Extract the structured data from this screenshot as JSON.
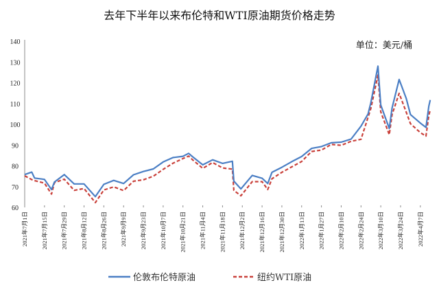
{
  "chart_data": {
    "type": "line",
    "title": "去年下半年以来布伦特和WTI原油期货价格走势",
    "unit_label": "单位：美元/桶",
    "xlabel": "",
    "ylabel": "",
    "ylim": [
      60,
      140
    ],
    "yticks": [
      60,
      70,
      80,
      90,
      100,
      110,
      120,
      130,
      140
    ],
    "grid": false,
    "legend_position": "bottom",
    "x_tick_labels": [
      {
        "date": "2021-07-01",
        "label": "2021年7月1日"
      },
      {
        "date": "2021-07-15",
        "label": "2021年7月15日"
      },
      {
        "date": "2021-07-29",
        "label": "2021年7月29日"
      },
      {
        "date": "2021-08-12",
        "label": "2021年8月12日"
      },
      {
        "date": "2021-08-26",
        "label": "2021年8月26日"
      },
      {
        "date": "2021-09-09",
        "label": "2021年9月9日"
      },
      {
        "date": "2021-09-23",
        "label": "2021年9月23日"
      },
      {
        "date": "2021-10-07",
        "label": "2021年10月7日"
      },
      {
        "date": "2021-10-21",
        "label": "2021年10月21日"
      },
      {
        "date": "2021-11-04",
        "label": "2021年11月4日"
      },
      {
        "date": "2021-11-18",
        "label": "2021年11月18日"
      },
      {
        "date": "2021-12-02",
        "label": "2021年12月2日"
      },
      {
        "date": "2021-12-16",
        "label": "2021年12月16日"
      },
      {
        "date": "2021-12-30",
        "label": "2021年12月30日"
      },
      {
        "date": "2022-01-13",
        "label": "2022年1月13日"
      },
      {
        "date": "2022-01-27",
        "label": "2022年1月27日"
      },
      {
        "date": "2022-02-10",
        "label": "2022年2月10日"
      },
      {
        "date": "2022-02-24",
        "label": "2022年2月24日"
      },
      {
        "date": "2022-03-10",
        "label": "2022年3月10日"
      },
      {
        "date": "2022-03-24",
        "label": "2022年3月24日"
      },
      {
        "date": "2022-04-07",
        "label": "2022年4月7日"
      }
    ],
    "x": [
      "2021-07-01",
      "2021-07-06",
      "2021-07-08",
      "2021-07-15",
      "2021-07-20",
      "2021-07-22",
      "2021-07-29",
      "2021-08-05",
      "2021-08-12",
      "2021-08-20",
      "2021-08-26",
      "2021-09-02",
      "2021-09-09",
      "2021-09-16",
      "2021-09-23",
      "2021-09-30",
      "2021-10-07",
      "2021-10-14",
      "2021-10-21",
      "2021-10-25",
      "2021-10-28",
      "2021-11-04",
      "2021-11-11",
      "2021-11-18",
      "2021-11-25",
      "2021-11-26",
      "2021-12-01",
      "2021-12-09",
      "2021-12-16",
      "2021-12-20",
      "2021-12-23",
      "2021-12-30",
      "2022-01-06",
      "2022-01-13",
      "2022-01-20",
      "2022-01-27",
      "2022-02-03",
      "2022-02-10",
      "2022-02-17",
      "2022-02-24",
      "2022-03-01",
      "2022-03-03",
      "2022-03-08",
      "2022-03-10",
      "2022-03-16",
      "2022-03-18",
      "2022-03-23",
      "2022-03-28",
      "2022-03-31",
      "2022-04-07",
      "2022-04-11",
      "2022-04-13",
      "2022-04-14"
    ],
    "series": [
      {
        "name": "伦敦布伦特原油",
        "color": "#4a7ec4",
        "style": "solid",
        "values": [
          75.8,
          77.0,
          74.1,
          73.5,
          68.6,
          72.2,
          75.8,
          71.3,
          71.3,
          65.2,
          71.1,
          73.0,
          71.5,
          75.7,
          77.3,
          78.5,
          81.9,
          84.0,
          84.6,
          86.0,
          84.3,
          80.5,
          82.9,
          81.2,
          82.2,
          72.7,
          68.9,
          75.4,
          74.0,
          71.5,
          76.9,
          79.3,
          82.0,
          84.5,
          88.4,
          89.3,
          91.1,
          91.4,
          92.9,
          99.1,
          105.0,
          110.5,
          128.0,
          109.3,
          98.0,
          107.9,
          121.6,
          112.5,
          104.7,
          100.6,
          98.5,
          108.8,
          111.7
        ]
      },
      {
        "name": "纽约WTI原油",
        "color": "#c9403a",
        "style": "dashed",
        "values": [
          75.2,
          73.4,
          72.9,
          71.7,
          66.4,
          71.9,
          73.6,
          68.2,
          69.1,
          62.3,
          68.4,
          69.9,
          68.1,
          72.6,
          73.3,
          75.0,
          78.3,
          81.3,
          83.5,
          84.7,
          82.8,
          78.8,
          81.6,
          79.0,
          78.4,
          68.2,
          65.6,
          72.4,
          72.4,
          68.6,
          73.8,
          76.9,
          79.5,
          82.1,
          86.9,
          87.6,
          90.3,
          89.9,
          91.8,
          92.8,
          103.4,
          107.7,
          123.7,
          106.0,
          95.0,
          104.7,
          114.9,
          105.9,
          100.3,
          96.0,
          94.3,
          104.3,
          106.9
        ]
      }
    ]
  }
}
